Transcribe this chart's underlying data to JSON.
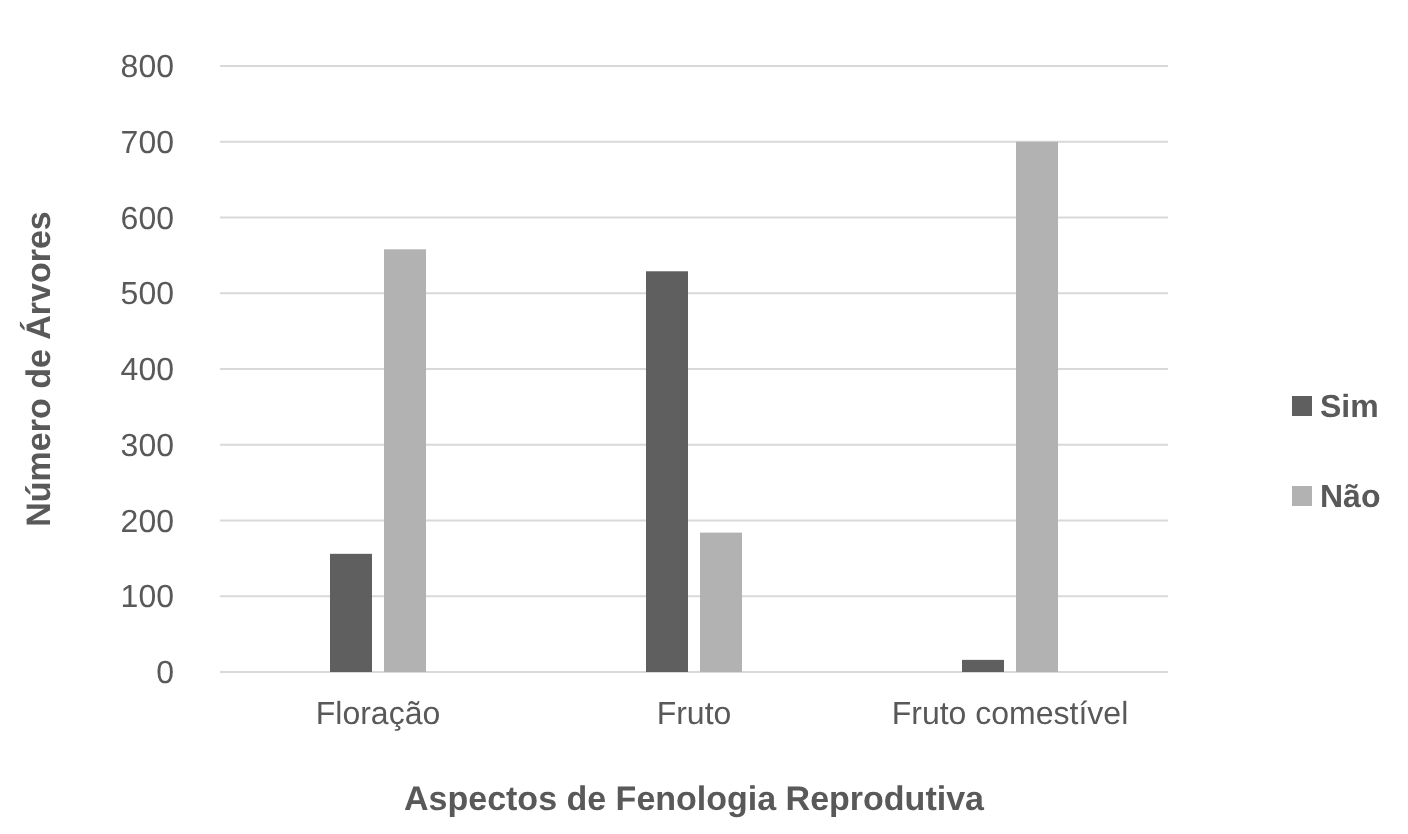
{
  "chart_data": {
    "type": "bar",
    "xlabel": "Aspectos de Fenologia Reprodutiva",
    "ylabel": "Número de Árvores",
    "categories": [
      "Floração",
      "Fruto",
      "Fruto comestível"
    ],
    "series": [
      {
        "name": "Sim",
        "color": "#5f5f5f",
        "values": [
          156,
          529,
          16
        ]
      },
      {
        "name": "Não",
        "color": "#b2b2b2",
        "values": [
          558,
          184,
          700
        ]
      }
    ],
    "ylim": [
      0,
      800
    ],
    "yticks": [
      0,
      100,
      200,
      300,
      400,
      500,
      600,
      700,
      800
    ],
    "grid": "y",
    "legend": "right"
  }
}
